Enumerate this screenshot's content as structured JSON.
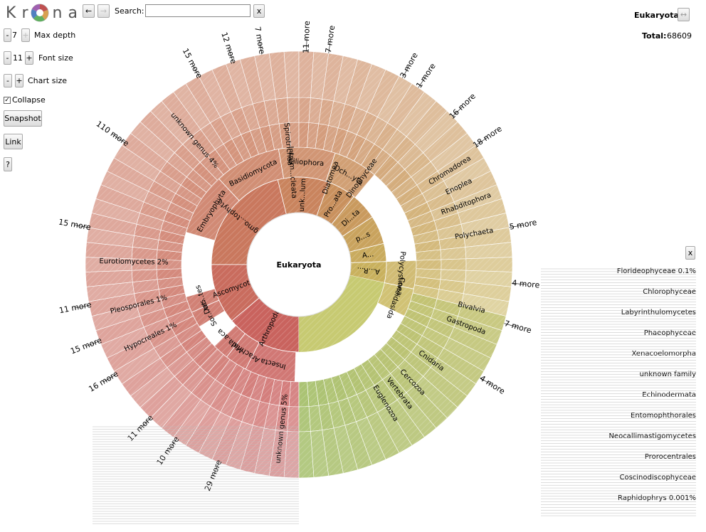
{
  "app": {
    "logo_letters": [
      "K",
      "r",
      "o",
      "n",
      "a"
    ]
  },
  "nav": {
    "back_label": "←",
    "forward_label": "→"
  },
  "search": {
    "label": "Search:",
    "value": "",
    "clear_label": "x"
  },
  "controls": {
    "max_depth": {
      "minus": "-",
      "value": "7",
      "plus": "+",
      "label": "Max depth"
    },
    "font_size": {
      "minus": "-",
      "value": "11",
      "plus": "+",
      "label": "Font size"
    },
    "chart_size": {
      "minus": "-",
      "plus": "+",
      "label": "Chart size"
    },
    "collapse": {
      "label": "Collapse",
      "checked": true
    },
    "snapshot_label": "Snapshot",
    "link_label": "Link",
    "help_label": "?"
  },
  "summary": {
    "selected": "Eukaryota",
    "expand_label": "↔",
    "total_label": "Total:",
    "total_value": "68609"
  },
  "key_panel": {
    "close_label": "x"
  },
  "chart_data": {
    "type": "sunburst",
    "root": "Eukaryota",
    "ring1": [
      {
        "name": "Phragmo...tophyta",
        "start": 270,
        "end": 346
      },
      {
        "name": "unk...lum",
        "start": 346,
        "end": 380
      },
      {
        "name": "Pro...ata",
        "start": 380,
        "end": 399
      },
      {
        "name": "Di...ta",
        "start": 399,
        "end": 417
      },
      {
        "name": "p...s",
        "start": 417,
        "end": 436
      },
      {
        "name": "A...",
        "start": 436,
        "end": 448
      },
      {
        "name": "A...R...",
        "start": 448,
        "end": 462
      },
      {
        "name": "Arthropoda",
        "start": 180,
        "end": 230
      },
      {
        "name": "Ascomycota",
        "start": 230,
        "end": 270
      }
    ],
    "ring2": [
      {
        "name": "Embryophyta",
        "start": 286,
        "end": 317
      },
      {
        "name": "Basidiomycota",
        "start": 317,
        "end": 350
      },
      {
        "name": "Ciliophora",
        "start": 350,
        "end": 378
      },
      {
        "name": "Och...yta",
        "start": 378,
        "end": 400
      },
      {
        "name": "Polycystinea",
        "start": 448,
        "end": 462
      },
      {
        "name": "Conoidasida",
        "start": 462,
        "end": 476
      },
      {
        "name": "Insecta",
        "start": 182,
        "end": 207
      },
      {
        "name": "Arachnida",
        "start": 207,
        "end": 218
      },
      {
        "name": "Mal...aca",
        "start": 218,
        "end": 226
      },
      {
        "name": "Sor...tes",
        "start": 238,
        "end": 246
      },
      {
        "name": "Dot...tes",
        "start": 246,
        "end": 254
      }
    ],
    "labels": [
      {
        "text": "unknown genus 4%",
        "angle": -40,
        "r": 228
      },
      {
        "text": "Eurotiomycetes 2%",
        "angle": -89,
        "r": 232
      },
      {
        "text": "Pleosporales 1%",
        "angle": -104,
        "r": 232
      },
      {
        "text": "Hypocreales 1%",
        "angle": -116,
        "r": 232
      },
      {
        "text": "unknown genus 5%",
        "angle": -174,
        "r": 232
      },
      {
        "text": "Spirotrichea",
        "angle": -5,
        "r": 170
      },
      {
        "text": "Intram...cleata",
        "angle": -4,
        "r": 130
      },
      {
        "text": "Diatomea",
        "angle": 20,
        "r": 130
      },
      {
        "text": "Dinophyceae",
        "angle": 36,
        "r": 150
      },
      {
        "text": "Chromadorea",
        "angle": 58,
        "r": 250
      },
      {
        "text": "Enoplea",
        "angle": 64,
        "r": 250
      },
      {
        "text": "Rhabditophora",
        "angle": 70,
        "r": 250
      },
      {
        "text": "Polychaeta",
        "angle": 80,
        "r": 250
      },
      {
        "text": "Bivalvia",
        "angle": 104,
        "r": 250
      },
      {
        "text": "Gastropoda",
        "angle": 110,
        "r": 250
      },
      {
        "text": "Cnidaria",
        "angle": 126,
        "r": 230
      },
      {
        "text": "Cercozoa",
        "angle": 136,
        "r": 230
      },
      {
        "text": "Vertebrata",
        "angle": 142,
        "r": 230
      },
      {
        "text": "Euglenozoa",
        "angle": 148,
        "r": 230
      }
    ],
    "outer_labels": [
      {
        "text": "110 more",
        "angle": -55
      },
      {
        "text": "15 more",
        "angle": -80
      },
      {
        "text": "11 more",
        "angle": -101
      },
      {
        "text": "15 more",
        "angle": -111
      },
      {
        "text": "16 more",
        "angle": -121
      },
      {
        "text": "11 more",
        "angle": -136
      },
      {
        "text": "10 more",
        "angle": -145
      },
      {
        "text": "29 more",
        "angle": -158
      },
      {
        "text": "15 more",
        "angle": -28
      },
      {
        "text": "12 more",
        "angle": -18
      },
      {
        "text": "7 more",
        "angle": -10
      },
      {
        "text": "11 more",
        "angle": 2
      },
      {
        "text": "7 more",
        "angle": 8
      },
      {
        "text": "3 more",
        "angle": 29
      },
      {
        "text": "1 more",
        "angle": 34
      },
      {
        "text": "16 more",
        "angle": 46
      },
      {
        "text": "18 more",
        "angle": 56
      },
      {
        "text": "5 more",
        "angle": 80
      },
      {
        "text": "4 more",
        "angle": 95
      },
      {
        "text": "7 more",
        "angle": 106
      },
      {
        "text": "4 more",
        "angle": 122
      }
    ],
    "key_entries": [
      "Florideophyceae 0.1%",
      "Chlorophyceae",
      "Labyrinthulomycetes",
      "Phaeophyceae",
      "Xenacoelomorpha",
      "unknown family",
      "Echinodermata",
      "Entomophthorales",
      "Neocallimastigomycetes",
      "Prorocentrales",
      "Coscinodiscophyceae",
      "Raphidophrys 0.001%"
    ]
  }
}
